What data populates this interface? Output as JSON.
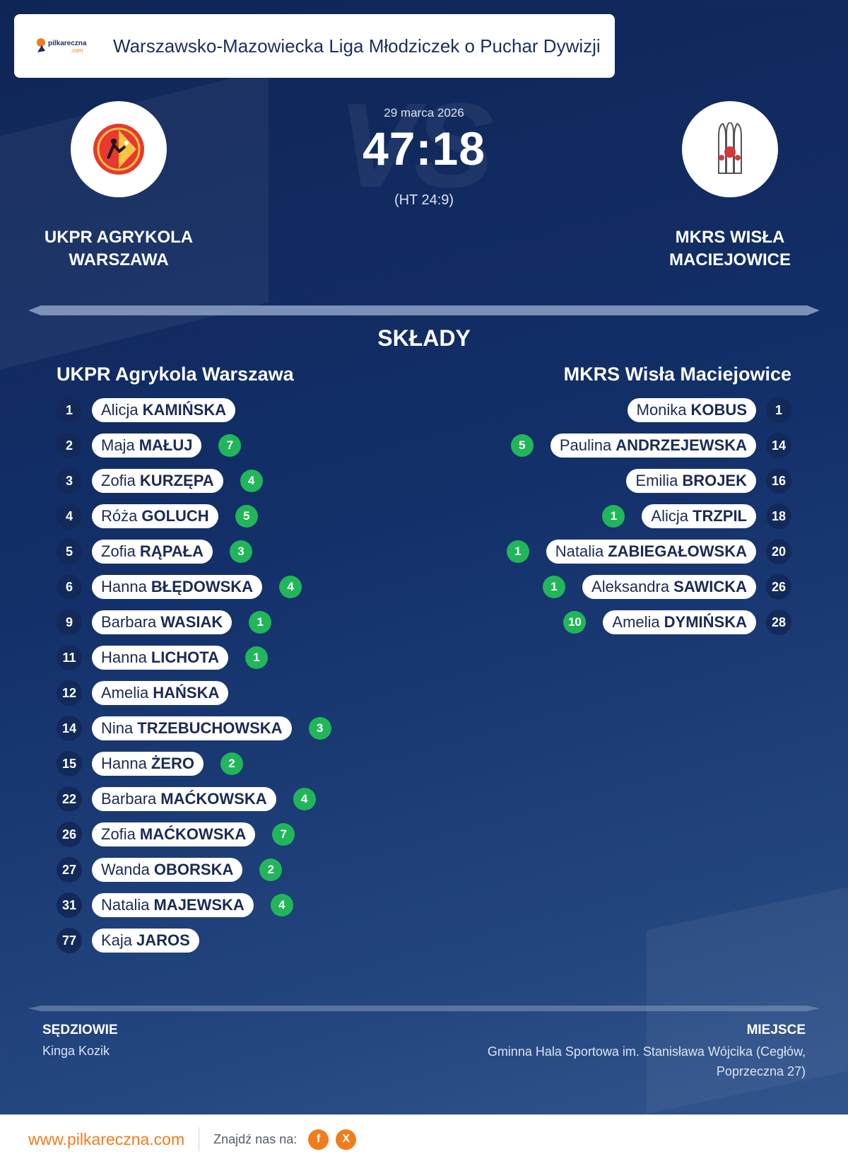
{
  "header": {
    "brand_name": "pilkareczna.com",
    "league_title": "Warszawsko-Mazowiecka Liga Młodziczek o Puchar Dywizji"
  },
  "match": {
    "date": "29 marca 2026",
    "score": "47:18",
    "halftime": "(HT 24:9)",
    "vs_watermark": "VS",
    "home_team": {
      "name": "UKPR AGRYKOLA WARSZAWA",
      "logo": "ukpr-agrykola-crest"
    },
    "away_team": {
      "name": "MKRS WISŁA MACIEJOWICE",
      "logo": "mkrs-wisla-crest"
    }
  },
  "lineups": {
    "title": "SKŁADY",
    "home": {
      "team": "UKPR Agrykola Warszawa",
      "players": [
        {
          "number": "1",
          "first": "Alicja",
          "last": "KAMIŃSKA",
          "goals": ""
        },
        {
          "number": "2",
          "first": "Maja",
          "last": "MAŁUJ",
          "goals": "7"
        },
        {
          "number": "3",
          "first": "Zofia",
          "last": "KURZĘPA",
          "goals": "4"
        },
        {
          "number": "4",
          "first": "Róża",
          "last": "GOLUCH",
          "goals": "5"
        },
        {
          "number": "5",
          "first": "Zofia",
          "last": "RĄPAŁA",
          "goals": "3"
        },
        {
          "number": "6",
          "first": "Hanna",
          "last": "BŁĘDOWSKA",
          "goals": "4"
        },
        {
          "number": "9",
          "first": "Barbara",
          "last": "WASIAK",
          "goals": "1"
        },
        {
          "number": "11",
          "first": "Hanna",
          "last": "LICHOTA",
          "goals": "1"
        },
        {
          "number": "12",
          "first": "Amelia",
          "last": "HAŃSKA",
          "goals": ""
        },
        {
          "number": "14",
          "first": "Nina",
          "last": "TRZEBUCHOWSKA",
          "goals": "3"
        },
        {
          "number": "15",
          "first": "Hanna",
          "last": "ŻERO",
          "goals": "2"
        },
        {
          "number": "22",
          "first": "Barbara",
          "last": "MAĆKOWSKA",
          "goals": "4"
        },
        {
          "number": "26",
          "first": "Zofia",
          "last": "MAĆKOWSKA",
          "goals": "7"
        },
        {
          "number": "27",
          "first": "Wanda",
          "last": "OBORSKA",
          "goals": "2"
        },
        {
          "number": "31",
          "first": "Natalia",
          "last": "MAJEWSKA",
          "goals": "4"
        },
        {
          "number": "77",
          "first": "Kaja",
          "last": "JAROS",
          "goals": ""
        }
      ]
    },
    "away": {
      "team": "MKRS Wisła Maciejowice",
      "players": [
        {
          "number": "1",
          "first": "Monika",
          "last": "KOBUS",
          "goals": ""
        },
        {
          "number": "14",
          "first": "Paulina",
          "last": "ANDRZEJEWSKA",
          "goals": "5"
        },
        {
          "number": "16",
          "first": "Emilia",
          "last": "BROJEK",
          "goals": ""
        },
        {
          "number": "18",
          "first": "Alicja",
          "last": "TRZPIL",
          "goals": "1"
        },
        {
          "number": "20",
          "first": "Natalia",
          "last": "ZABIEGAŁOWSKA",
          "goals": "1"
        },
        {
          "number": "26",
          "first": "Aleksandra",
          "last": "SAWICKA",
          "goals": "1"
        },
        {
          "number": "28",
          "first": "Amelia",
          "last": "DYMIŃSKA",
          "goals": "10"
        }
      ]
    }
  },
  "officials": {
    "referees_label": "SĘDZIOWIE",
    "referees": "Kinga Kozik",
    "venue_label": "MIEJSCE",
    "venue": "Gminna Hala Sportowa im. Stanisława Wójcika (Cegłów, Poprzeczna 27)"
  },
  "footer": {
    "site": "www.pilkareczna.com",
    "find_us": "Znajdź nas na:",
    "social": [
      {
        "icon": "facebook-icon",
        "glyph": "f"
      },
      {
        "icon": "x-icon",
        "glyph": "X"
      }
    ]
  },
  "colors": {
    "background": "#13306a",
    "accent_orange": "#f07c1e",
    "goals_green": "#21b65a",
    "pill_text": "#1b2b55"
  }
}
